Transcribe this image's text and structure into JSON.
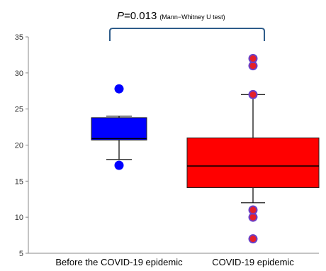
{
  "chart_data": {
    "type": "box",
    "categories": [
      "Before the COVID-19 epidemic",
      "COVID-19 epidemic"
    ],
    "ylim": [
      5,
      35
    ],
    "yticks": [
      5,
      10,
      15,
      20,
      25,
      30,
      35
    ],
    "grid": false,
    "series": [
      {
        "category": "Before the COVID-19 epidemic",
        "color": "#0000FF",
        "q1": 20.7,
        "median": 20.9,
        "q3": 23.8,
        "whisker_low": 18.0,
        "whisker_high": 24.0,
        "outliers": [
          17.2,
          27.8
        ],
        "outlier_fill": "#0000FF",
        "outlier_stroke": "#0000FF"
      },
      {
        "category": "COVID-19 epidemic",
        "color": "#FF0000",
        "q1": 14.1,
        "median": 17.1,
        "q3": 21.0,
        "whisker_low": 12.0,
        "whisker_high": 27.0,
        "outliers": [
          7.0,
          10.0,
          11.0,
          27.0,
          31.0,
          32.0
        ],
        "outlier_fill": "#E4202A",
        "outlier_stroke": "#6A3FC8"
      }
    ],
    "annotation": {
      "p_symbol": "P",
      "p_value": "=0.013",
      "test": "(Mann−Whitney U test)",
      "bracket_color": "#2E5C8A"
    }
  }
}
